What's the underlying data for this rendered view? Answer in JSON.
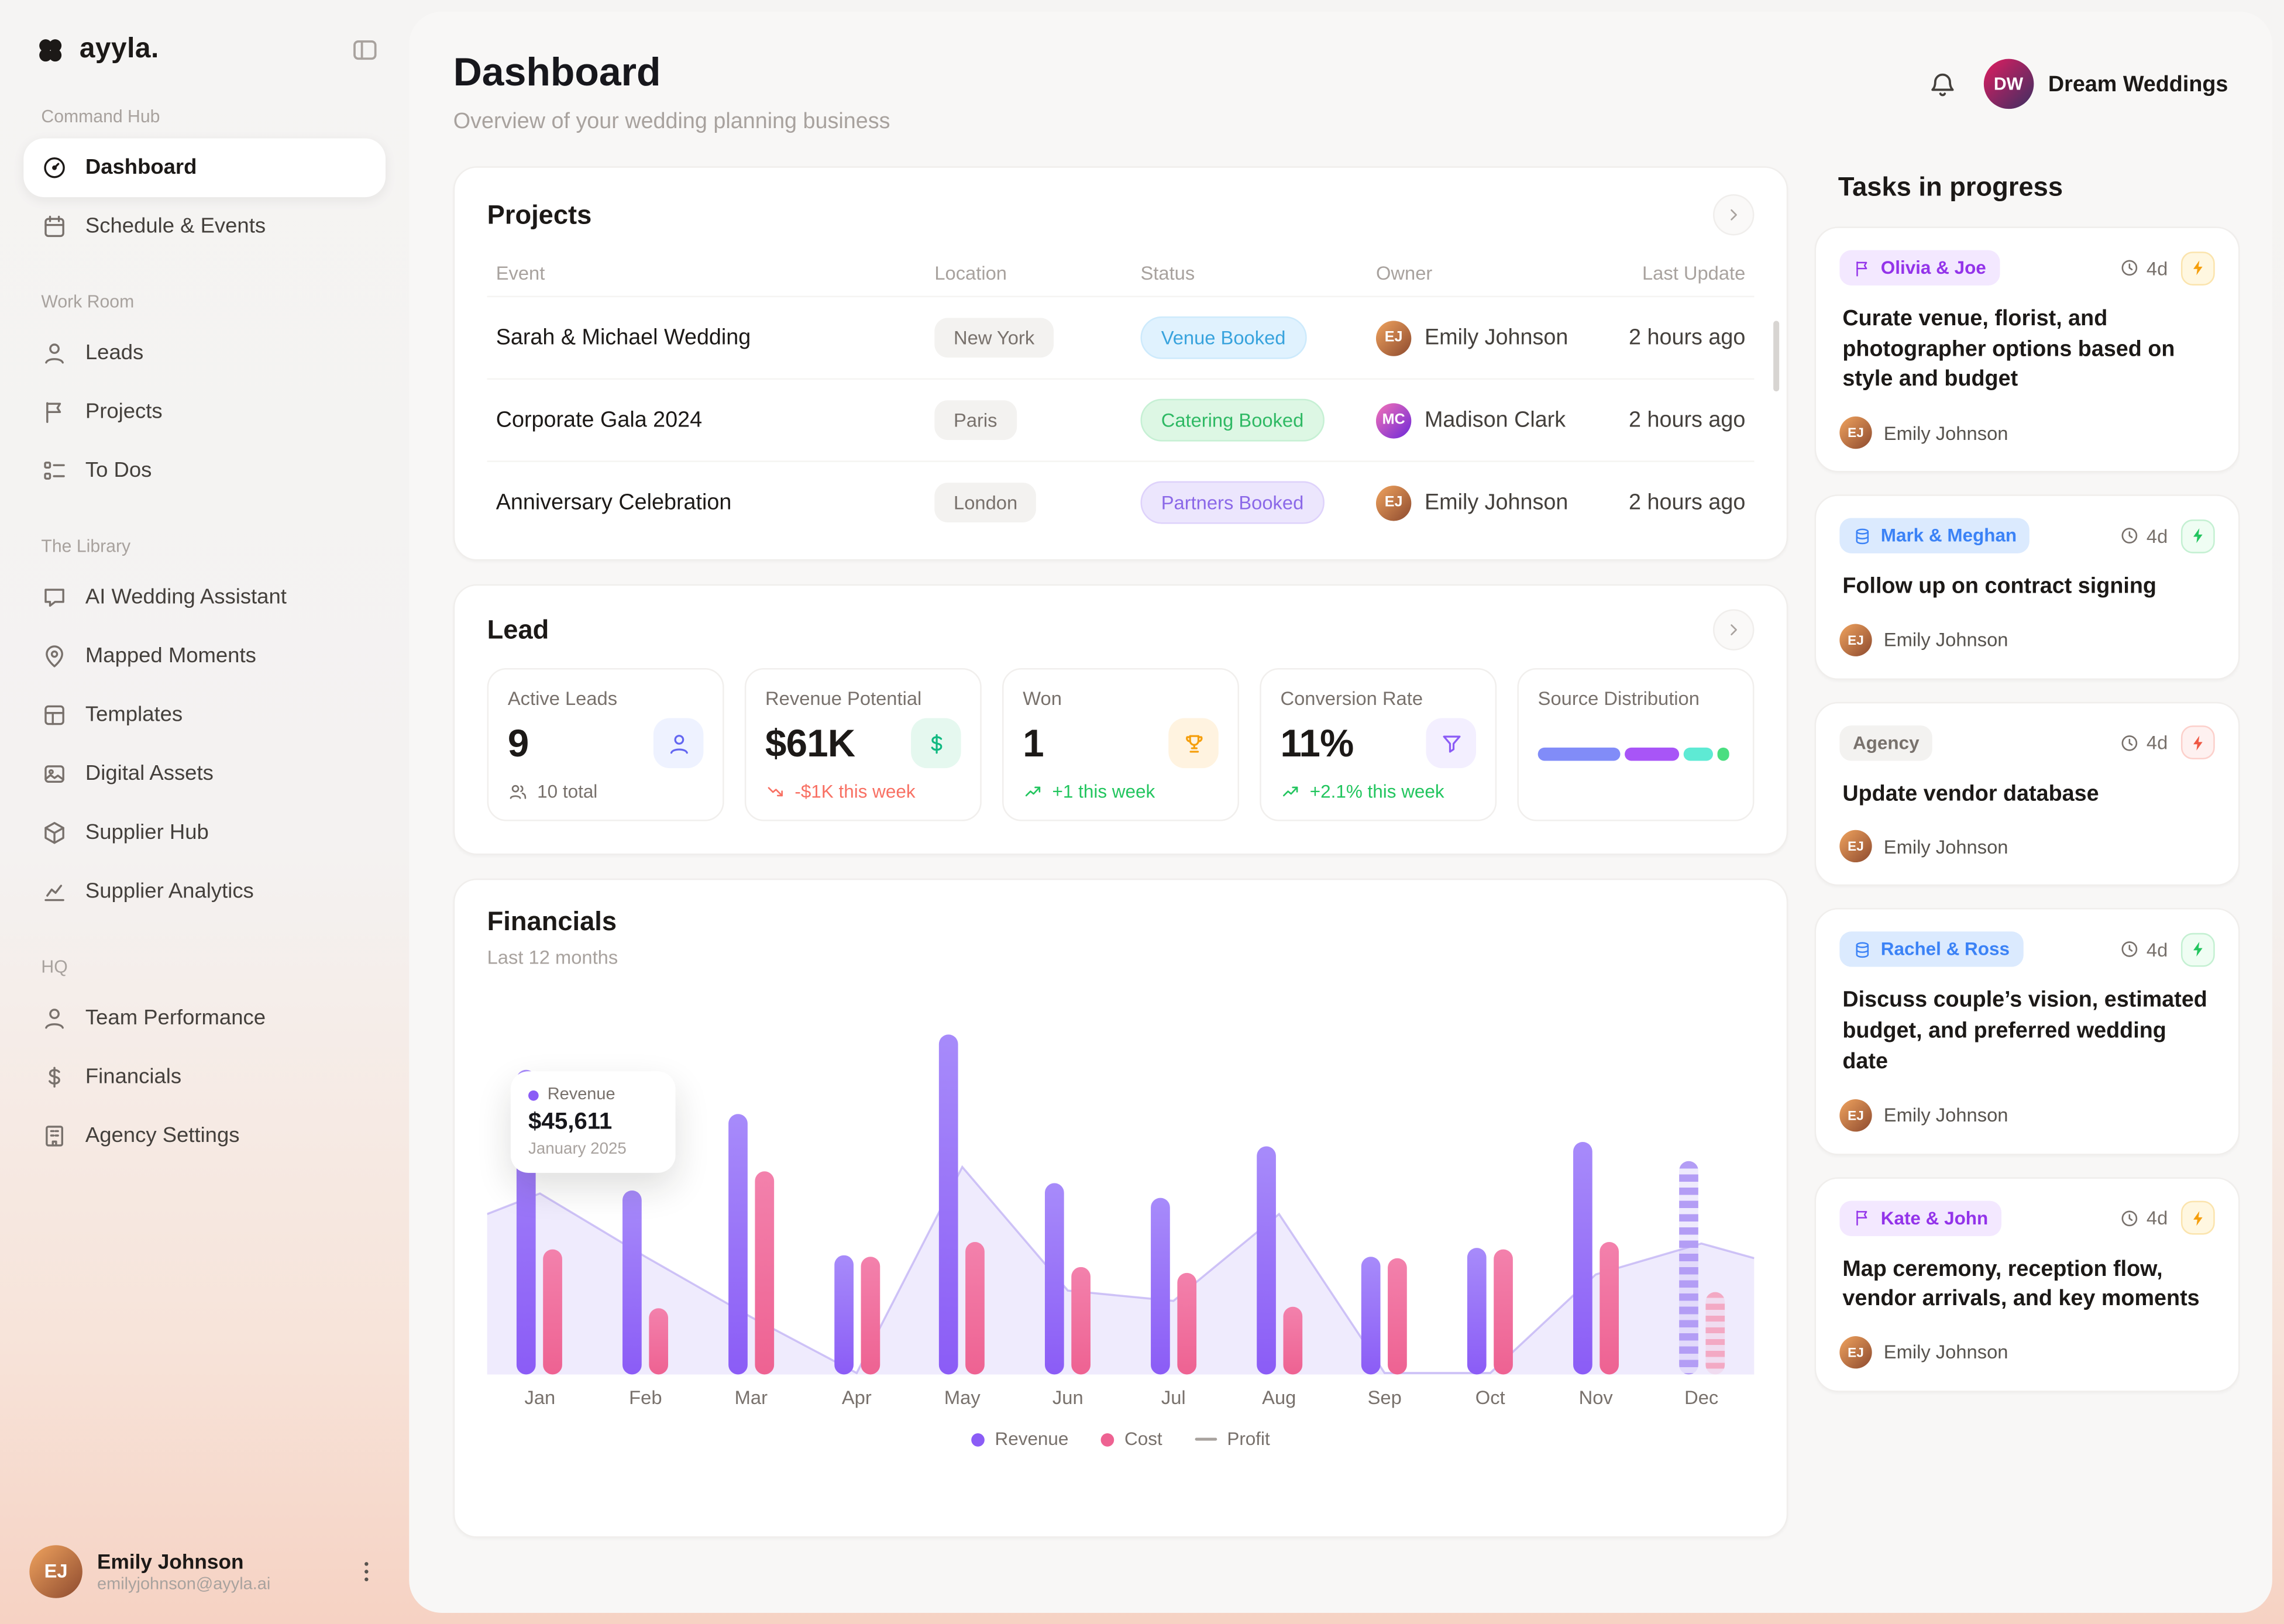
{
  "brand": {
    "name": "ayyla."
  },
  "sidebar": {
    "sections": [
      {
        "label": "Command Hub",
        "items": [
          {
            "label": "Dashboard",
            "icon": "dashboard",
            "active": true
          },
          {
            "label": "Schedule & Events",
            "icon": "calendar"
          }
        ]
      },
      {
        "label": "Work Room",
        "items": [
          {
            "label": "Leads",
            "icon": "user"
          },
          {
            "label": "Projects",
            "icon": "flag"
          },
          {
            "label": "To Dos",
            "icon": "checklist"
          }
        ]
      },
      {
        "label": "The Library",
        "items": [
          {
            "label": "AI Wedding Assistant",
            "icon": "chat"
          },
          {
            "label": "Mapped Moments",
            "icon": "map-pin"
          },
          {
            "label": "Templates",
            "icon": "layout"
          },
          {
            "label": "Digital Assets",
            "icon": "image"
          },
          {
            "label": "Supplier Hub",
            "icon": "box"
          },
          {
            "label": "Supplier Analytics",
            "icon": "chart"
          }
        ]
      },
      {
        "label": "HQ",
        "items": [
          {
            "label": "Team Performance",
            "icon": "user"
          },
          {
            "label": "Financials",
            "icon": "dollar"
          },
          {
            "label": "Agency Settings",
            "icon": "building"
          }
        ]
      }
    ],
    "user": {
      "name": "Emily Johnson",
      "email": "emilyjohnson@ayyla.ai",
      "initials": "EJ"
    }
  },
  "header": {
    "title": "Dashboard",
    "subtitle": "Overview of your wedding planning business",
    "workspace": "Dream Weddings",
    "workspace_initials": "DW"
  },
  "projects": {
    "title": "Projects",
    "columns": [
      "Event",
      "Location",
      "Status",
      "Owner",
      "Last Update"
    ],
    "rows": [
      {
        "event": "Sarah & Michael Wedding",
        "location": "New York",
        "status": "Venue Booked",
        "status_color": "blue",
        "owner": "Emily Johnson",
        "owner_initials": "EJ",
        "updated": "2 hours ago"
      },
      {
        "event": "Corporate Gala 2024",
        "location": "Paris",
        "status": "Catering Booked",
        "status_color": "green",
        "owner": "Madison Clark",
        "owner_initials": "MC",
        "updated": "2 hours ago"
      },
      {
        "event": "Anniversary Celebration",
        "location": "London",
        "status": "Partners Booked",
        "status_color": "purple",
        "owner": "Emily Johnson",
        "owner_initials": "EJ",
        "updated": "2 hours ago"
      }
    ]
  },
  "lead": {
    "title": "Lead",
    "stats": [
      {
        "label": "Active Leads",
        "value": "9",
        "icon": "user",
        "icon_color": "blue",
        "sub": "10 total",
        "sub_icon": "users",
        "trend": "neutral"
      },
      {
        "label": "Revenue Potential",
        "value": "$61K",
        "icon": "dollar",
        "icon_color": "green",
        "sub": "-$1K this week",
        "sub_icon": "trend-down",
        "trend": "down"
      },
      {
        "label": "Won",
        "value": "1",
        "icon": "trophy",
        "icon_color": "amber",
        "sub": "+1 this week",
        "sub_icon": "trend-up",
        "trend": "up"
      },
      {
        "label": "Conversion Rate",
        "value": "11%",
        "icon": "funnel",
        "icon_color": "purple",
        "sub": "+2.1% this week",
        "sub_icon": "trend-up",
        "trend": "up"
      }
    ],
    "distribution": {
      "label": "Source Distribution",
      "segments": [
        {
          "color": "#818cf8",
          "pct": 42
        },
        {
          "color": "#a855f7",
          "pct": 28
        },
        {
          "color": "#5eead4",
          "pct": 15
        },
        {
          "color": "#4ade80",
          "pct": 6
        }
      ]
    }
  },
  "financials": {
    "title": "Financials",
    "subtitle": "Last 12 months",
    "tooltip": {
      "series": "Revenue",
      "value": "$45,611",
      "period": "January 2025"
    },
    "legend": [
      {
        "label": "Revenue",
        "color": "#8b5cf6",
        "type": "dot"
      },
      {
        "label": "Cost",
        "color": "#ee6292",
        "type": "dot"
      },
      {
        "label": "Profit",
        "color": "#a8a29e",
        "type": "line"
      }
    ]
  },
  "chart_data": {
    "type": "bar",
    "title": "Financials",
    "subtitle": "Last 12 months",
    "categories": [
      "Jan",
      "Feb",
      "Mar",
      "Apr",
      "May",
      "Jun",
      "Jul",
      "Aug",
      "Sep",
      "Oct",
      "Nov",
      "Dec"
    ],
    "series": [
      {
        "name": "Revenue",
        "color": "#8b5cf6",
        "values": [
          45611,
          27400,
          38900,
          17800,
          50800,
          28600,
          26300,
          34100,
          17600,
          18900,
          34800,
          31900
        ]
      },
      {
        "name": "Cost",
        "color": "#ee6292",
        "values": [
          18600,
          9800,
          30400,
          17600,
          19700,
          16100,
          15200,
          10200,
          17400,
          18600,
          19800,
          12300
        ]
      },
      {
        "name": "Profit",
        "type": "area",
        "color": "#c4b5fd",
        "values": [
          27011,
          17600,
          8500,
          200,
          31100,
          12500,
          11100,
          23900,
          200,
          300,
          15000,
          19600
        ]
      }
    ],
    "ylim": [
      0,
      55000
    ],
    "grid": false,
    "legend_position": "bottom",
    "projected_last_month": true,
    "tooltip": {
      "series": "Revenue",
      "value": 45611,
      "label": "January 2025"
    }
  },
  "tasks": {
    "title": "Tasks in progress",
    "items": [
      {
        "tag": "Olivia & Joe",
        "tag_style": "purple",
        "tag_icon": "flag",
        "due": "4d",
        "priority": "amber",
        "text": "Curate venue, florist, and photographer options based on style and budget",
        "assignee": "Emily Johnson",
        "assignee_initials": "EJ"
      },
      {
        "tag": "Mark & Meghan",
        "tag_style": "blue",
        "tag_icon": "layers",
        "due": "4d",
        "priority": "green",
        "text": "Follow up on contract signing",
        "assignee": "Emily Johnson",
        "assignee_initials": "EJ"
      },
      {
        "tag": "Agency",
        "tag_style": "gray",
        "tag_icon": null,
        "due": "4d",
        "priority": "red",
        "text": "Update vendor database",
        "assignee": "Emily Johnson",
        "assignee_initials": "EJ"
      },
      {
        "tag": "Rachel & Ross",
        "tag_style": "blue",
        "tag_icon": "layers",
        "due": "4d",
        "priority": "green",
        "text": "Discuss couple’s vision, estimated budget, and preferred wedding date",
        "assignee": "Emily Johnson",
        "assignee_initials": "EJ"
      },
      {
        "tag": "Kate & John",
        "tag_style": "purple",
        "tag_icon": "flag",
        "due": "4d",
        "priority": "amber",
        "text": "Map ceremony, reception flow, vendor arrivals, and key moments",
        "assignee": "Emily Johnson",
        "assignee_initials": "EJ"
      }
    ]
  }
}
